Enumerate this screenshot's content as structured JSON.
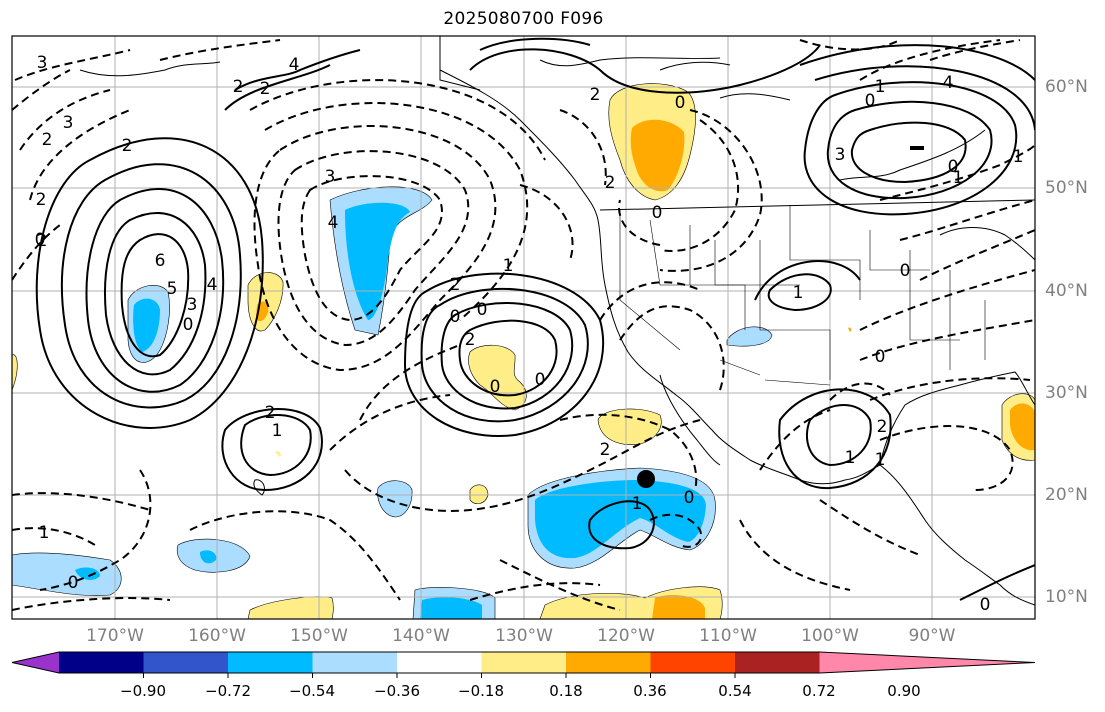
{
  "title": "2025080700 F096",
  "lon_ticks": [
    "170°W",
    "160°W",
    "150°W",
    "140°W",
    "130°W",
    "120°W",
    "110°W",
    "100°W",
    "90°W"
  ],
  "lat_ticks": [
    "60°N",
    "50°N",
    "40°N",
    "30°N",
    "20°N",
    "10°N"
  ],
  "colorbar": {
    "labels": [
      "−0.90",
      "−0.72",
      "−0.54",
      "−0.36",
      "−0.18",
      "0.18",
      "0.36",
      "0.54",
      "0.72",
      "0.90"
    ],
    "colors": [
      "#9933cc",
      "#000088",
      "#3355cc",
      "#00bbff",
      "#aaddff",
      "#ffffff",
      "#ffee88",
      "#ffaa00",
      "#ff4400",
      "#aa2222",
      "#ff88aa"
    ]
  },
  "contour_labels": [
    "3",
    "4",
    "2",
    "2",
    "3",
    "2",
    "2",
    "2",
    "2",
    "2",
    "0",
    "1",
    "4",
    "3",
    "0",
    "0",
    "6",
    "5",
    "4",
    "3",
    "0",
    "3",
    "4",
    "2",
    "1",
    "2",
    "0",
    "0",
    "0",
    "2",
    "1",
    "2",
    "1",
    "0",
    "1",
    "0",
    "1",
    "0",
    "0",
    "2",
    "1",
    "0",
    "0",
    "1",
    "0",
    "1",
    "0",
    "2",
    "1"
  ],
  "feature_colors": {
    "blue_light": "#aaddff",
    "blue": "#00bbff",
    "yellow": "#ffee88",
    "orange": "#ffaa00"
  }
}
